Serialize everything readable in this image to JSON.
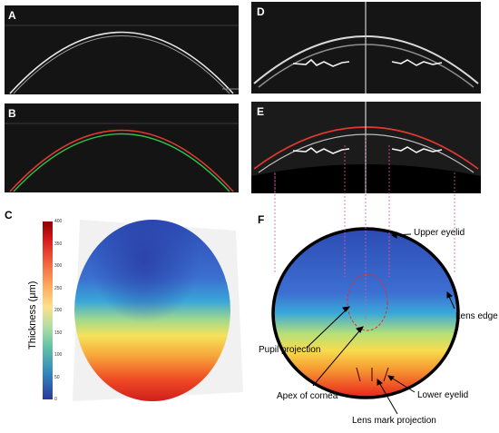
{
  "panels": {
    "a": {
      "label": "A"
    },
    "b": {
      "label": "B"
    },
    "c": {
      "label": "C"
    },
    "d": {
      "label": "D"
    },
    "e": {
      "label": "E"
    },
    "f": {
      "label": "F"
    }
  },
  "colorbar": {
    "title": "Thickness (μm)",
    "ticks": [
      "400",
      "350",
      "300",
      "250",
      "200",
      "150",
      "100",
      "50",
      "0"
    ],
    "colors": [
      "#8b0000",
      "#d7191c",
      "#f46d43",
      "#fdae61",
      "#fee08b",
      "#abdda4",
      "#66c2a5",
      "#3288bd",
      "#2b3a9a"
    ]
  },
  "annotations": {
    "upper_eyelid": "Upper eyelid",
    "lens_edge": "Lens edge",
    "pupil_projection": "Pupil projection",
    "apex_of_cornea": "Apex of cornea",
    "lower_eyelid": "Lower eyelid",
    "lens_mark_projection": "Lens mark projection"
  },
  "colors": {
    "red_trace": "#e0302a",
    "green_trace": "#2fbf4a",
    "guide_line": "#e05aa0"
  }
}
